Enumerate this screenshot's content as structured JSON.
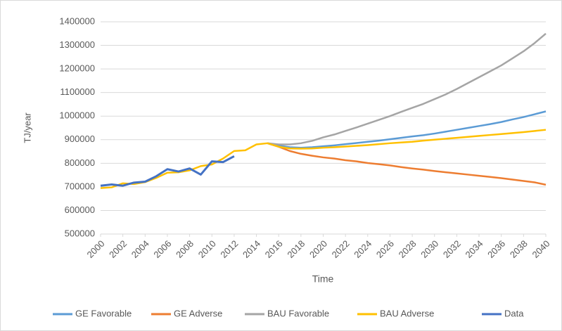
{
  "chart_data": {
    "type": "line",
    "y_label": "TJ/year",
    "x_label": "Time",
    "x": [
      2000,
      2001,
      2002,
      2003,
      2004,
      2005,
      2006,
      2007,
      2008,
      2009,
      2010,
      2011,
      2012,
      2013,
      2014,
      2015,
      2016,
      2017,
      2018,
      2019,
      2020,
      2021,
      2022,
      2023,
      2024,
      2025,
      2026,
      2027,
      2028,
      2029,
      2030,
      2031,
      2032,
      2033,
      2034,
      2035,
      2036,
      2037,
      2038,
      2039,
      2040
    ],
    "xlim": [
      2000,
      2040
    ],
    "xticks": [
      2000,
      2002,
      2004,
      2006,
      2008,
      2010,
      2012,
      2014,
      2016,
      2018,
      2020,
      2022,
      2024,
      2026,
      2028,
      2030,
      2032,
      2034,
      2036,
      2038,
      2040
    ],
    "ylim": [
      500000,
      1400000
    ],
    "yticks": [
      500000,
      600000,
      700000,
      800000,
      900000,
      1000000,
      1100000,
      1200000,
      1300000,
      1400000
    ],
    "grid": true,
    "legend": "bottom",
    "series": [
      {
        "name": "GE Favorable",
        "color": "#5b9bd5",
        "values": [
          null,
          null,
          null,
          null,
          null,
          null,
          null,
          null,
          null,
          null,
          null,
          null,
          null,
          null,
          null,
          885000,
          875000,
          868000,
          866000,
          868000,
          872000,
          876000,
          881000,
          886000,
          891000,
          896000,
          902000,
          908000,
          914000,
          919000,
          926000,
          934000,
          942000,
          950000,
          958000,
          966000,
          975000,
          986000,
          996000,
          1008000,
          1020000
        ]
      },
      {
        "name": "GE Adverse",
        "color": "#ed7d31",
        "values": [
          null,
          null,
          null,
          null,
          null,
          null,
          null,
          null,
          null,
          null,
          null,
          null,
          null,
          null,
          null,
          885000,
          870000,
          852000,
          840000,
          832000,
          825000,
          820000,
          813000,
          808000,
          801000,
          796000,
          791000,
          784000,
          778000,
          773000,
          767000,
          762000,
          757000,
          752000,
          747000,
          742000,
          737000,
          731000,
          725000,
          719000,
          709000
        ]
      },
      {
        "name": "BAU Favorable",
        "color": "#a5a5a5",
        "values": [
          null,
          null,
          null,
          null,
          null,
          null,
          null,
          null,
          null,
          null,
          null,
          null,
          null,
          null,
          null,
          885000,
          880000,
          880000,
          885000,
          895000,
          910000,
          922000,
          937000,
          952000,
          968000,
          984000,
          1000000,
          1018000,
          1035000,
          1052000,
          1072000,
          1092000,
          1115000,
          1140000,
          1165000,
          1190000,
          1215000,
          1245000,
          1275000,
          1310000,
          1350000
        ]
      },
      {
        "name": "BAU Adverse",
        "color": "#ffc000",
        "values": [
          695000,
          698000,
          715000,
          712000,
          720000,
          738000,
          760000,
          762000,
          770000,
          788000,
          795000,
          820000,
          852000,
          855000,
          880000,
          885000,
          870000,
          863000,
          862000,
          863000,
          866000,
          868000,
          871000,
          874000,
          877000,
          881000,
          885000,
          888000,
          891000,
          896000,
          900000,
          904000,
          908000,
          912000,
          916000,
          920000,
          924000,
          928000,
          932000,
          937000,
          942000
        ]
      },
      {
        "name": "Data",
        "color": "#4472c4",
        "values": [
          705000,
          710000,
          705000,
          718000,
          722000,
          745000,
          775000,
          765000,
          778000,
          752000,
          808000,
          805000,
          830000,
          null,
          null,
          null,
          null,
          null,
          null,
          null,
          null,
          null,
          null,
          null,
          null,
          null,
          null,
          null,
          null,
          null,
          null,
          null,
          null,
          null,
          null,
          null,
          null,
          null,
          null,
          null,
          null
        ]
      }
    ]
  }
}
